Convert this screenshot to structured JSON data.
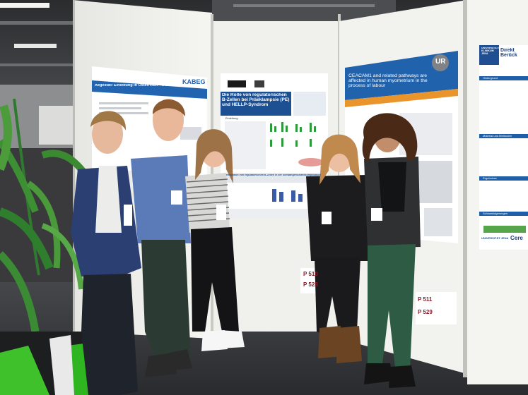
{
  "poster_left": {
    "org": "KABEG",
    "title_line": "Aegesta® Einleitung in Österreich – 3 Jahres Daten"
  },
  "poster_center": {
    "title": "Die Rolle von regulatorischen B-Zellen bei Präeklampsie (PE) und HELLP-Syndrom",
    "section_intro": "Einleitung",
    "section_results": "Reduktion von regulatorischen B-Zellen in der Schwangerschaftskomplikation",
    "board_number_top": "P 510",
    "board_number_bottom": "P 528"
  },
  "poster_right": {
    "logo_letters": "UR",
    "title": "CEACAM1 and related pathways are affected in human myometrium in the process of labour",
    "board_number_top": "P 511",
    "board_number_bottom": "P 529"
  },
  "poster_far_right": {
    "org": "UNIVERSITÄTS KLINIKUM JENA",
    "title_fragment": "Direkt Berück",
    "sections": [
      "Hintergrund",
      "Material und Methoden",
      "Ergebnisse",
      "Schlussfolgerungen"
    ],
    "footer_org": "UNIVERSITÄT JENA",
    "footer_fragment": "Cere"
  },
  "colors": {
    "floor": "#2f3033",
    "panel": "#f1f1ee",
    "poster_blue": "#1f5ea8",
    "poster_orange": "#e9952b",
    "accent_red": "#8a1a28"
  }
}
